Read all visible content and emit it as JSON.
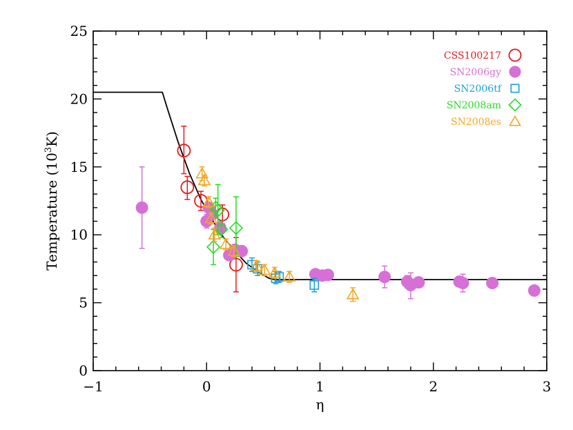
{
  "chart_data": {
    "type": "scatter",
    "xlabel": "η",
    "ylabel": {
      "main": "Temperature (10",
      "sup": "3",
      "tail": "K)"
    },
    "xlim": [
      -1,
      3
    ],
    "ylim": [
      0,
      25
    ],
    "xticks": [
      -1,
      0,
      1,
      2,
      3
    ],
    "xtick_labels": [
      "−1",
      "0",
      "1",
      "2",
      "3"
    ],
    "yticks": [
      0,
      5,
      10,
      15,
      20,
      25
    ],
    "ytick_labels": [
      "0",
      "5",
      "10",
      "15",
      "20",
      "25"
    ],
    "legend_position": "top-right",
    "model_curve": {
      "color": "#000000",
      "points": [
        [
          -1.0,
          20.5
        ],
        [
          -0.39,
          20.5
        ],
        [
          -0.35,
          19.4
        ],
        [
          -0.25,
          16.8
        ],
        [
          -0.15,
          14.5
        ],
        [
          -0.05,
          12.6
        ],
        [
          0.05,
          11.1
        ],
        [
          0.15,
          9.8
        ],
        [
          0.25,
          8.8
        ],
        [
          0.35,
          7.9
        ],
        [
          0.45,
          7.3
        ],
        [
          0.55,
          6.8
        ],
        [
          0.6,
          6.7
        ],
        [
          3.0,
          6.7
        ]
      ]
    },
    "series": [
      {
        "name": "CSS100217",
        "color": "#e41a1c",
        "marker": "open-circle",
        "points": [
          {
            "x": -0.2,
            "y": 16.2,
            "lo": 14.5,
            "hi": 18.0
          },
          {
            "x": -0.17,
            "y": 13.5,
            "lo": 12.6,
            "hi": 14.3
          },
          {
            "x": -0.05,
            "y": 12.5,
            "lo": 11.8,
            "hi": 13.2
          },
          {
            "x": 0.14,
            "y": 11.5,
            "lo": 10.8,
            "hi": 12.2
          },
          {
            "x": 0.26,
            "y": 7.8,
            "lo": 5.8,
            "hi": 9.8
          }
        ]
      },
      {
        "name": "SN2006gy",
        "color": "#d670d6",
        "marker": "filled-circle",
        "points": [
          {
            "x": -0.57,
            "y": 12.0,
            "lo": 9.0,
            "hi": 15.0
          },
          {
            "x": 0.0,
            "y": 11.0,
            "lo": 10.5,
            "hi": 11.5
          },
          {
            "x": 0.02,
            "y": 12.0
          },
          {
            "x": 0.05,
            "y": 11.5
          },
          {
            "x": 0.12,
            "y": 10.5
          },
          {
            "x": 0.2,
            "y": 8.5
          },
          {
            "x": 0.25,
            "y": 8.9
          },
          {
            "x": 0.31,
            "y": 8.8
          },
          {
            "x": 0.96,
            "y": 7.1
          },
          {
            "x": 1.02,
            "y": 7.0
          },
          {
            "x": 1.07,
            "y": 7.05
          },
          {
            "x": 1.57,
            "y": 6.9,
            "lo": 6.1,
            "hi": 7.7
          },
          {
            "x": 1.77,
            "y": 6.55,
            "lo": 6.1,
            "hi": 7.0
          },
          {
            "x": 1.8,
            "y": 6.3,
            "lo": 5.3,
            "hi": 7.2
          },
          {
            "x": 1.87,
            "y": 6.5
          },
          {
            "x": 2.23,
            "y": 6.55
          },
          {
            "x": 2.26,
            "y": 6.45,
            "lo": 5.8,
            "hi": 7.1
          },
          {
            "x": 2.52,
            "y": 6.45
          },
          {
            "x": 2.89,
            "y": 5.9
          }
        ]
      },
      {
        "name": "SN2006tf",
        "color": "#1a9fdc",
        "marker": "open-square",
        "points": [
          {
            "x": 0.4,
            "y": 7.8,
            "lo": 7.3,
            "hi": 8.3
          },
          {
            "x": 0.45,
            "y": 7.5,
            "lo": 7.0,
            "hi": 8.0
          },
          {
            "x": 0.61,
            "y": 6.8,
            "lo": 6.4,
            "hi": 7.3
          },
          {
            "x": 0.64,
            "y": 6.9,
            "lo": 6.5,
            "hi": 7.3
          },
          {
            "x": 0.95,
            "y": 6.3,
            "lo": 5.8,
            "hi": 6.8
          }
        ]
      },
      {
        "name": "SN2008am",
        "color": "#22dd22",
        "marker": "open-diamond",
        "points": [
          {
            "x": 0.06,
            "y": 9.1,
            "lo": 7.8,
            "hi": 10.4
          },
          {
            "x": 0.08,
            "y": 12.0,
            "lo": 11.3,
            "hi": 12.7
          },
          {
            "x": 0.1,
            "y": 11.8,
            "lo": 10.0,
            "hi": 13.7
          },
          {
            "x": 0.13,
            "y": 10.4,
            "lo": 9.8,
            "hi": 11.0
          },
          {
            "x": 0.26,
            "y": 10.5,
            "lo": 8.4,
            "hi": 12.8
          }
        ]
      },
      {
        "name": "SN2008es",
        "color": "#f5a623",
        "marker": "open-triangle",
        "points": [
          {
            "x": -0.04,
            "y": 14.5,
            "lo": 14.0,
            "hi": 15.0
          },
          {
            "x": -0.02,
            "y": 14.0,
            "lo": 13.6,
            "hi": 14.4
          },
          {
            "x": 0.02,
            "y": 12.4,
            "lo": 12.0,
            "hi": 12.8
          },
          {
            "x": 0.04,
            "y": 11.2,
            "lo": 10.8,
            "hi": 11.6
          },
          {
            "x": 0.07,
            "y": 10.0,
            "lo": 9.5,
            "hi": 10.5
          },
          {
            "x": 0.17,
            "y": 9.3,
            "lo": 8.9,
            "hi": 9.7
          },
          {
            "x": 0.24,
            "y": 8.8,
            "lo": 8.4,
            "hi": 9.2
          },
          {
            "x": 0.44,
            "y": 7.7,
            "lo": 7.3,
            "hi": 8.1
          },
          {
            "x": 0.51,
            "y": 7.4,
            "lo": 7.0,
            "hi": 7.8
          },
          {
            "x": 0.6,
            "y": 7.2,
            "lo": 6.8,
            "hi": 7.6
          },
          {
            "x": 0.73,
            "y": 6.9,
            "lo": 6.5,
            "hi": 7.3
          },
          {
            "x": 1.29,
            "y": 5.6,
            "lo": 5.1,
            "hi": 6.1
          }
        ]
      }
    ]
  }
}
